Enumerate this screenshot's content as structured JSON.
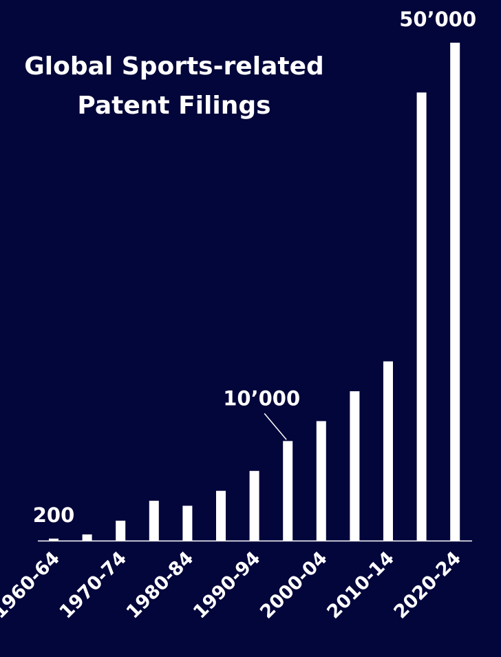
{
  "chart_data": {
    "type": "bar",
    "title": "Global Sports-related Patent Filings",
    "categories": [
      "1960-64",
      null,
      "1970-74",
      null,
      "1980-84",
      null,
      "1990-94",
      null,
      "2000-04",
      null,
      "2010-14",
      null,
      "2020-24"
    ],
    "values": [
      200,
      620,
      2000,
      4000,
      3500,
      5000,
      7000,
      10000,
      12000,
      15000,
      18000,
      45000,
      50000
    ],
    "value_labels": [
      "200",
      null,
      null,
      null,
      null,
      null,
      null,
      "10’000",
      null,
      null,
      null,
      null,
      "50’000"
    ],
    "color": "#ffffff",
    "ylim": [
      0,
      50000
    ]
  }
}
